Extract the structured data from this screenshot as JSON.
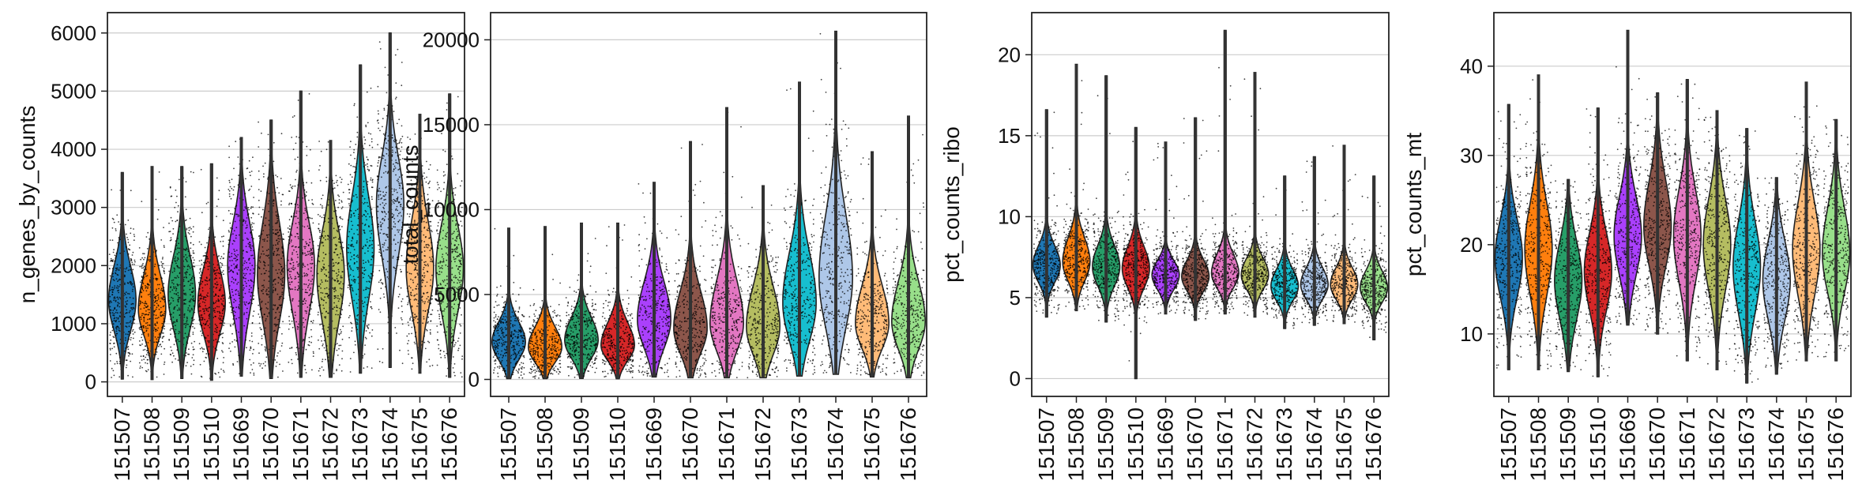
{
  "palette": [
    "#1f77b4",
    "#ff7f0e",
    "#279e68",
    "#d62728",
    "#aa40fc",
    "#8c564b",
    "#e377c2",
    "#b5bd61",
    "#17becf",
    "#aec7e8",
    "#ffbb78",
    "#98df8a"
  ],
  "chart_data": [
    {
      "type": "violin",
      "ylabel": "n_genes_by_counts",
      "ylim": [
        -250,
        6350
      ],
      "yticks": [
        0,
        1000,
        2000,
        3000,
        4000,
        5000,
        6000
      ],
      "grid": true,
      "categories": [
        "151507",
        "151508",
        "151509",
        "151510",
        "151669",
        "151670",
        "151671",
        "151672",
        "151673",
        "151674",
        "151675",
        "151676"
      ],
      "series": [
        {
          "median": 1400,
          "q1": 1050,
          "q3": 1800,
          "min": 50,
          "max": 3600,
          "width": 0.8
        },
        {
          "median": 1250,
          "q1": 950,
          "q3": 1650,
          "min": 40,
          "max": 3700,
          "width": 0.8
        },
        {
          "median": 1500,
          "q1": 1100,
          "q3": 1950,
          "min": 60,
          "max": 3700,
          "width": 0.8
        },
        {
          "median": 1350,
          "q1": 1000,
          "q3": 1750,
          "min": 30,
          "max": 3750,
          "width": 0.8
        },
        {
          "median": 2000,
          "q1": 1450,
          "q3": 2500,
          "min": 100,
          "max": 4200,
          "width": 0.8
        },
        {
          "median": 1850,
          "q1": 1300,
          "q3": 2450,
          "min": 60,
          "max": 4500,
          "width": 0.8
        },
        {
          "median": 2000,
          "q1": 1450,
          "q3": 2500,
          "min": 80,
          "max": 5000,
          "width": 0.8
        },
        {
          "median": 1850,
          "q1": 1300,
          "q3": 2350,
          "min": 80,
          "max": 4150,
          "width": 0.8
        },
        {
          "median": 2300,
          "q1": 1700,
          "q3": 2900,
          "min": 150,
          "max": 5450,
          "width": 0.8
        },
        {
          "median": 3050,
          "q1": 2450,
          "q3": 3600,
          "min": 250,
          "max": 6000,
          "width": 0.8
        },
        {
          "median": 1950,
          "q1": 1450,
          "q3": 2500,
          "min": 150,
          "max": 4600,
          "width": 0.8
        },
        {
          "median": 1950,
          "q1": 1450,
          "q3": 2450,
          "min": 80,
          "max": 4950,
          "width": 0.8
        }
      ]
    },
    {
      "type": "violin",
      "ylabel": "total_counts",
      "ylim": [
        -1000,
        21600
      ],
      "yticks": [
        0,
        5000,
        10000,
        15000,
        20000
      ],
      "grid": true,
      "categories": [
        "151507",
        "151508",
        "151509",
        "151510",
        "151669",
        "151670",
        "151671",
        "151672",
        "151673",
        "151674",
        "151675",
        "151676"
      ],
      "series": [
        {
          "median": 2200,
          "q1": 1500,
          "q3": 3000,
          "min": 50,
          "max": 8900,
          "width": 0.8
        },
        {
          "median": 1900,
          "q1": 1300,
          "q3": 2700,
          "min": 50,
          "max": 9000,
          "width": 0.8
        },
        {
          "median": 2300,
          "q1": 1600,
          "q3": 3200,
          "min": 60,
          "max": 9200,
          "width": 0.8
        },
        {
          "median": 2000,
          "q1": 1400,
          "q3": 2900,
          "min": 40,
          "max": 9200,
          "width": 0.8
        },
        {
          "median": 3500,
          "q1": 2400,
          "q3": 5000,
          "min": 150,
          "max": 11600,
          "width": 0.8
        },
        {
          "median": 3000,
          "q1": 2000,
          "q3": 4500,
          "min": 100,
          "max": 14000,
          "width": 0.8
        },
        {
          "median": 3300,
          "q1": 2200,
          "q3": 5000,
          "min": 100,
          "max": 16000,
          "width": 0.8
        },
        {
          "median": 3100,
          "q1": 2000,
          "q3": 4700,
          "min": 100,
          "max": 11400,
          "width": 0.8
        },
        {
          "median": 4500,
          "q1": 3000,
          "q3": 6500,
          "min": 200,
          "max": 17500,
          "width": 0.8
        },
        {
          "median": 6000,
          "q1": 4000,
          "q3": 8500,
          "min": 300,
          "max": 20500,
          "width": 0.8
        },
        {
          "median": 3300,
          "q1": 2300,
          "q3": 4800,
          "min": 150,
          "max": 13400,
          "width": 0.8
        },
        {
          "median": 3400,
          "q1": 2300,
          "q3": 5000,
          "min": 100,
          "max": 15500,
          "width": 0.8
        }
      ]
    },
    {
      "type": "violin",
      "ylabel": "pct_counts_ribo",
      "ylim": [
        -1.1,
        22.6
      ],
      "yticks": [
        0,
        5,
        10,
        15,
        20
      ],
      "grid": true,
      "categories": [
        "151507",
        "151508",
        "151509",
        "151510",
        "151669",
        "151670",
        "151671",
        "151672",
        "151673",
        "151674",
        "151675",
        "151676"
      ],
      "series": [
        {
          "median": 7.0,
          "q1": 6.3,
          "q3": 7.8,
          "min": 3.8,
          "max": 16.6,
          "width": 0.8
        },
        {
          "median": 7.2,
          "q1": 6.4,
          "q3": 8.2,
          "min": 4.2,
          "max": 19.4,
          "width": 0.8
        },
        {
          "median": 6.9,
          "q1": 6.1,
          "q3": 7.8,
          "min": 3.5,
          "max": 18.7,
          "width": 0.8
        },
        {
          "median": 6.8,
          "q1": 6.0,
          "q3": 7.7,
          "min": 0.0,
          "max": 15.5,
          "width": 0.8
        },
        {
          "median": 6.4,
          "q1": 5.8,
          "q3": 7.0,
          "min": 4.0,
          "max": 14.6,
          "width": 0.8
        },
        {
          "median": 6.3,
          "q1": 5.7,
          "q3": 7.0,
          "min": 3.6,
          "max": 16.1,
          "width": 0.8
        },
        {
          "median": 6.5,
          "q1": 5.9,
          "q3": 7.3,
          "min": 4.0,
          "max": 21.5,
          "width": 0.8
        },
        {
          "median": 6.4,
          "q1": 5.8,
          "q3": 7.1,
          "min": 3.8,
          "max": 18.9,
          "width": 0.8
        },
        {
          "median": 5.7,
          "q1": 5.1,
          "q3": 6.4,
          "min": 3.1,
          "max": 12.5,
          "width": 0.8
        },
        {
          "median": 5.8,
          "q1": 5.2,
          "q3": 6.5,
          "min": 3.3,
          "max": 13.7,
          "width": 0.8
        },
        {
          "median": 5.8,
          "q1": 5.2,
          "q3": 6.5,
          "min": 3.4,
          "max": 14.4,
          "width": 0.8
        },
        {
          "median": 5.6,
          "q1": 5.0,
          "q3": 6.3,
          "min": 2.4,
          "max": 12.5,
          "width": 0.8
        }
      ]
    },
    {
      "type": "violin",
      "ylabel": "pct_counts_mt",
      "ylim": [
        3,
        46
      ],
      "yticks": [
        10,
        20,
        30,
        40
      ],
      "grid": true,
      "categories": [
        "151507",
        "151508",
        "151509",
        "151510",
        "151669",
        "151670",
        "151671",
        "151672",
        "151673",
        "151674",
        "151675",
        "151676"
      ],
      "series": [
        {
          "median": 18.5,
          "q1": 15.5,
          "q3": 21.5,
          "min": 6.0,
          "max": 35.7,
          "width": 0.8
        },
        {
          "median": 19.5,
          "q1": 16.0,
          "q3": 23.0,
          "min": 6.0,
          "max": 39.0,
          "width": 0.8
        },
        {
          "median": 16.0,
          "q1": 13.0,
          "q3": 19.0,
          "min": 5.8,
          "max": 27.3,
          "width": 0.8
        },
        {
          "median": 17.0,
          "q1": 14.0,
          "q3": 20.0,
          "min": 5.2,
          "max": 35.3,
          "width": 0.8
        },
        {
          "median": 21.0,
          "q1": 18.0,
          "q3": 24.0,
          "min": 11.0,
          "max": 44.0,
          "width": 0.8
        },
        {
          "median": 22.0,
          "q1": 19.0,
          "q3": 25.5,
          "min": 10.0,
          "max": 37.0,
          "width": 0.8
        },
        {
          "median": 21.0,
          "q1": 17.5,
          "q3": 24.5,
          "min": 7.0,
          "max": 38.5,
          "width": 0.8
        },
        {
          "median": 20.0,
          "q1": 16.5,
          "q3": 23.5,
          "min": 6.0,
          "max": 35.0,
          "width": 0.8
        },
        {
          "median": 17.5,
          "q1": 14.0,
          "q3": 21.0,
          "min": 4.5,
          "max": 33.0,
          "width": 0.8
        },
        {
          "median": 16.0,
          "q1": 13.0,
          "q3": 19.0,
          "min": 5.5,
          "max": 27.5,
          "width": 0.8
        },
        {
          "median": 19.5,
          "q1": 16.0,
          "q3": 23.0,
          "min": 7.0,
          "max": 38.2,
          "width": 0.8
        },
        {
          "median": 19.0,
          "q1": 16.0,
          "q3": 22.5,
          "min": 7.0,
          "max": 34.0,
          "width": 0.8
        }
      ]
    }
  ]
}
